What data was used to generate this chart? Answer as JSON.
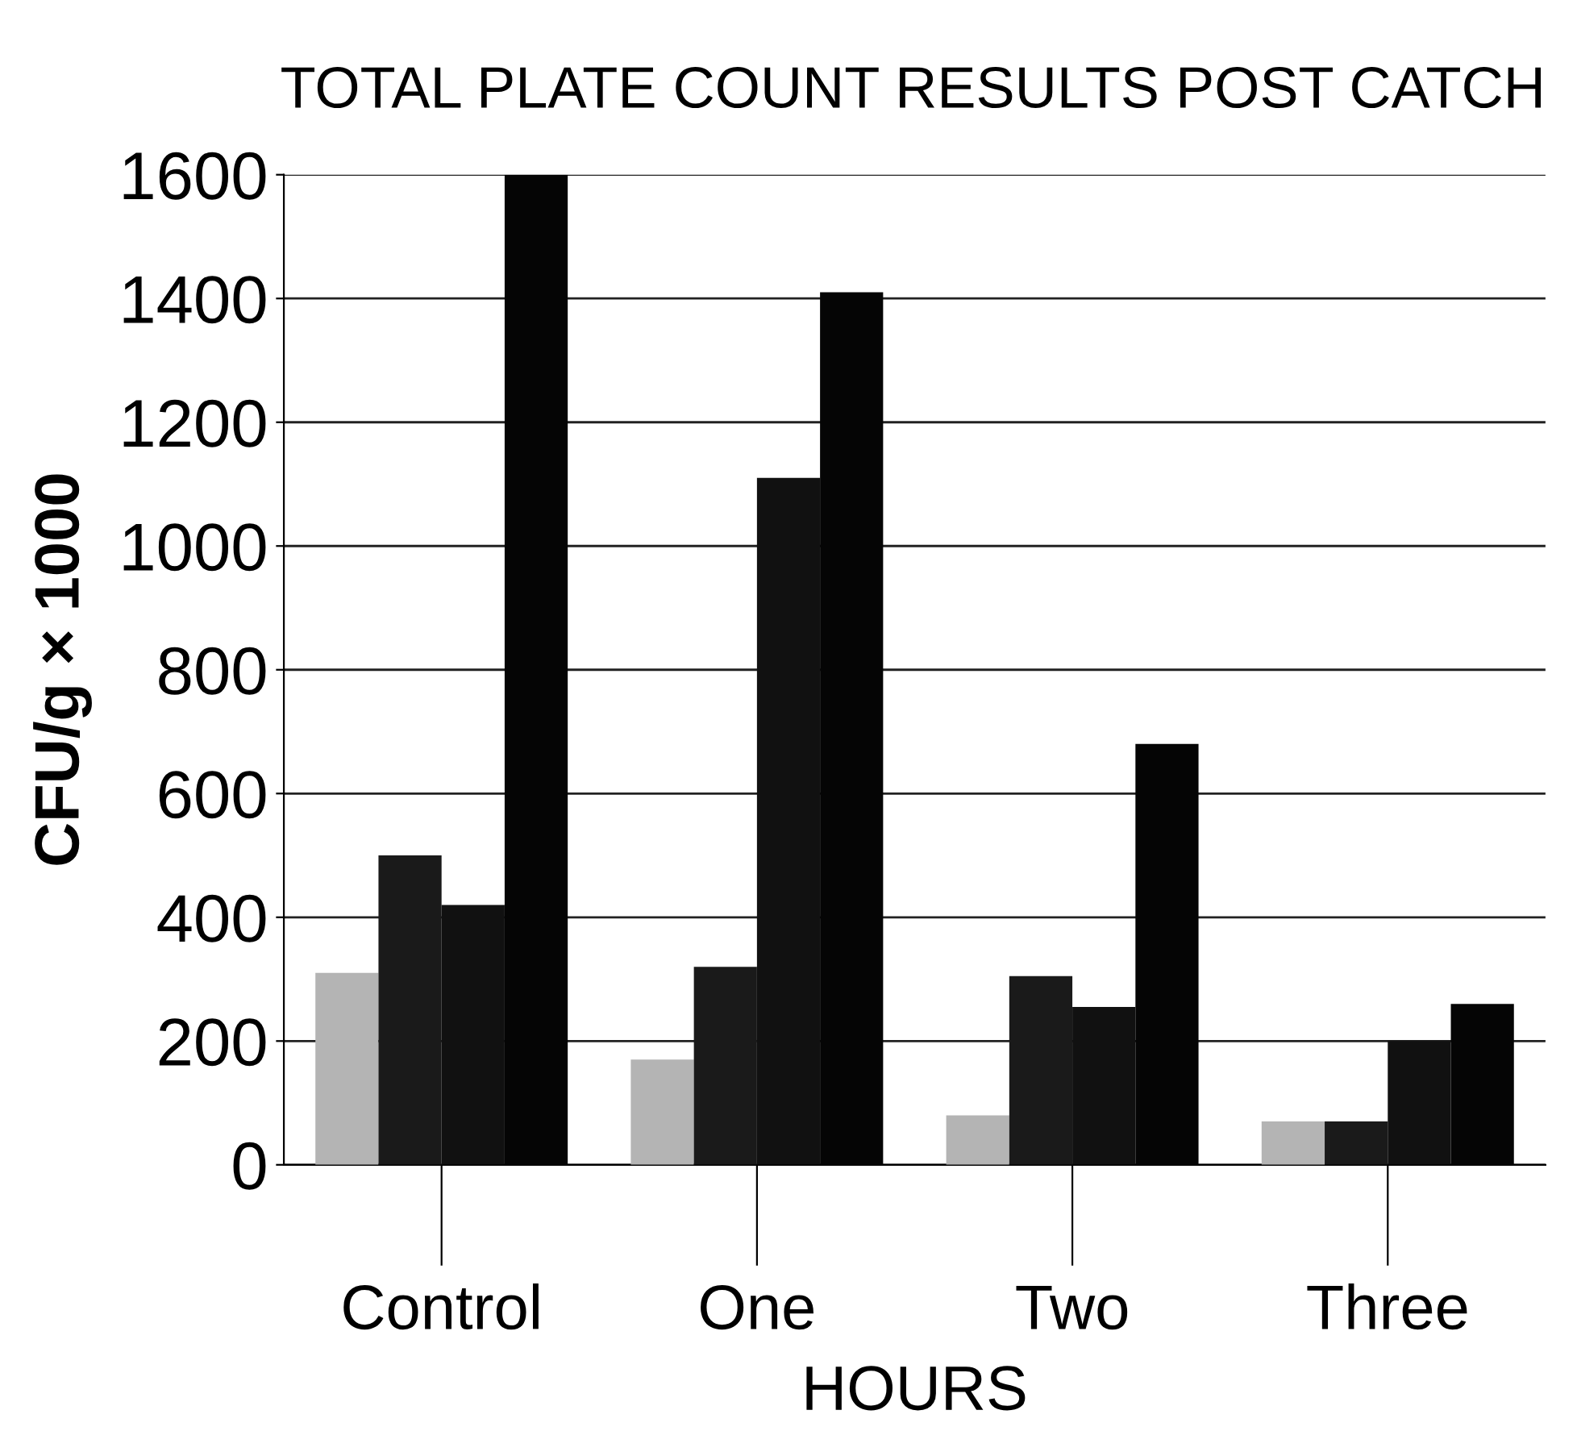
{
  "chart_data": {
    "type": "bar",
    "title": "TOTAL PLATE COUNT RESULTS POST CATCH",
    "xlabel": "HOURS",
    "ylabel": "CFU/g × 1000",
    "categories": [
      "Control",
      "One",
      "Two",
      "Three"
    ],
    "series": [
      {
        "color": "#b4b4b4",
        "values": [
          310,
          170,
          80,
          70
        ]
      },
      {
        "color": "#1a1a1a",
        "values": [
          500,
          320,
          305,
          70
        ]
      },
      {
        "color": "#111111",
        "values": [
          420,
          1110,
          255,
          200
        ]
      },
      {
        "color": "#050505",
        "values": [
          1600,
          1410,
          680,
          260
        ]
      }
    ],
    "ylim": [
      0,
      1600
    ],
    "yticks": [
      0,
      200,
      400,
      600,
      800,
      1000,
      1200,
      1400,
      1600
    ],
    "grid": "y",
    "legend": false
  }
}
